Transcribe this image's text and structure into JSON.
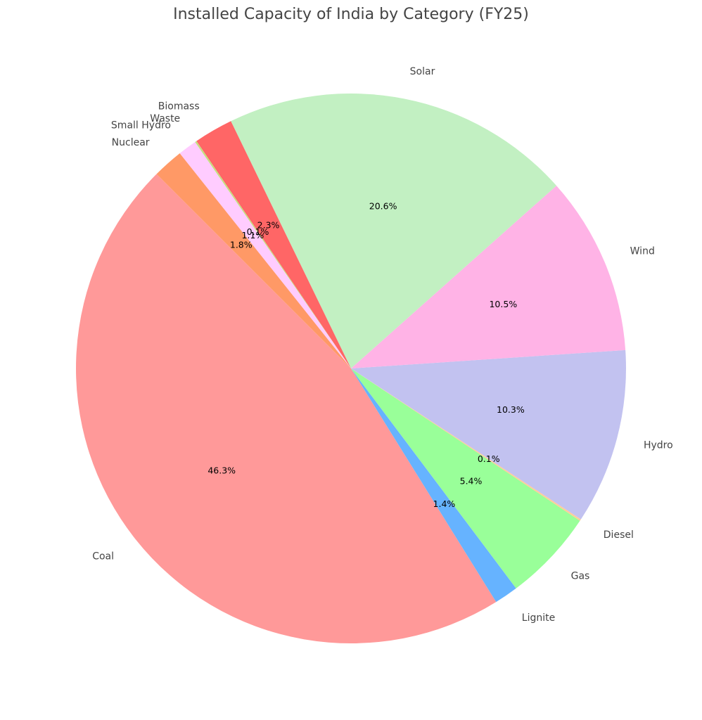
{
  "chart_data": {
    "type": "pie",
    "title": "Installed Capacity of India by Category (FY25)",
    "start_angle_deg": 135,
    "direction": "counterclockwise",
    "slices": [
      {
        "label": "Coal",
        "value": 46.3,
        "pct_label": "46.3%",
        "color": "#ff9999"
      },
      {
        "label": "Lignite",
        "value": 1.4,
        "pct_label": "1.4%",
        "color": "#66b3ff"
      },
      {
        "label": "Gas",
        "value": 5.4,
        "pct_label": "5.4%",
        "color": "#99ff99"
      },
      {
        "label": "Diesel",
        "value": 0.1,
        "pct_label": "0.1%",
        "color": "#ffcc99"
      },
      {
        "label": "Hydro",
        "value": 10.3,
        "pct_label": "10.3%",
        "color": "#c2c2f0"
      },
      {
        "label": "Wind",
        "value": 10.5,
        "pct_label": "10.5%",
        "color": "#ffb3e6"
      },
      {
        "label": "Solar",
        "value": 20.6,
        "pct_label": "20.6%",
        "color": "#c2f0c2"
      },
      {
        "label": "Biomass",
        "value": 2.3,
        "pct_label": "2.3%",
        "color": "#ff6666"
      },
      {
        "label": "Waste",
        "value": 0.1,
        "pct_label": "0.1%",
        "color": "#c4e17f"
      },
      {
        "label": "Small Hydro",
        "value": 1.1,
        "pct_label": "1.1%",
        "color": "#ffccff"
      },
      {
        "label": "Nuclear",
        "value": 1.8,
        "pct_label": "1.8%",
        "color": "#ff9966"
      }
    ]
  }
}
